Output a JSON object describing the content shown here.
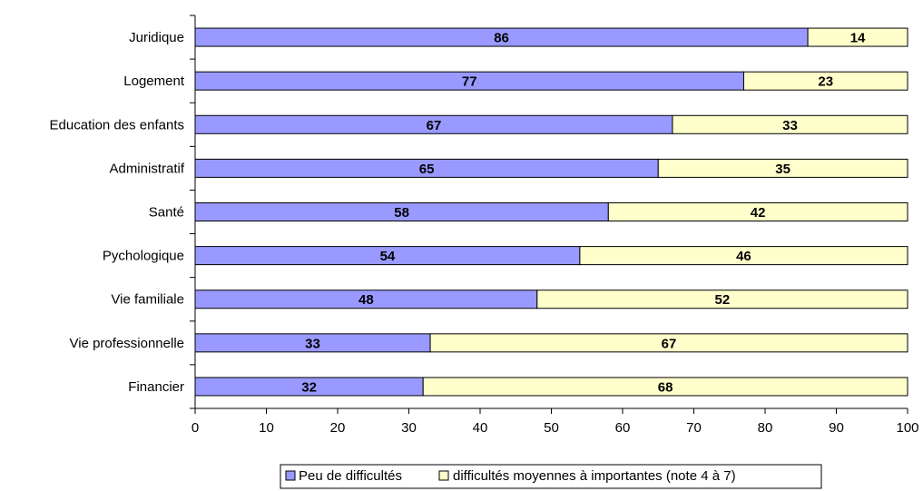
{
  "chart_data": {
    "type": "bar",
    "orientation": "horizontal",
    "stacked": true,
    "categories": [
      "Juridique",
      "Logement",
      "Education des enfants",
      "Administratif",
      "Santé",
      "Pychologique",
      "Vie familiale",
      "Vie professionnelle",
      "Financier"
    ],
    "series": [
      {
        "name": "Peu de difficultés",
        "color": "#9999ff",
        "values": [
          86,
          77,
          67,
          65,
          58,
          54,
          48,
          33,
          32
        ]
      },
      {
        "name": "difficultés moyennes à importantes (note 4 à 7)",
        "color": "#ffffcc",
        "values": [
          14,
          23,
          33,
          35,
          42,
          46,
          52,
          67,
          68
        ]
      }
    ],
    "xlim": [
      0,
      100
    ],
    "xticks": [
      0,
      10,
      20,
      30,
      40,
      50,
      60,
      70,
      80,
      90,
      100
    ],
    "legend_position": "bottom",
    "grid": false
  }
}
